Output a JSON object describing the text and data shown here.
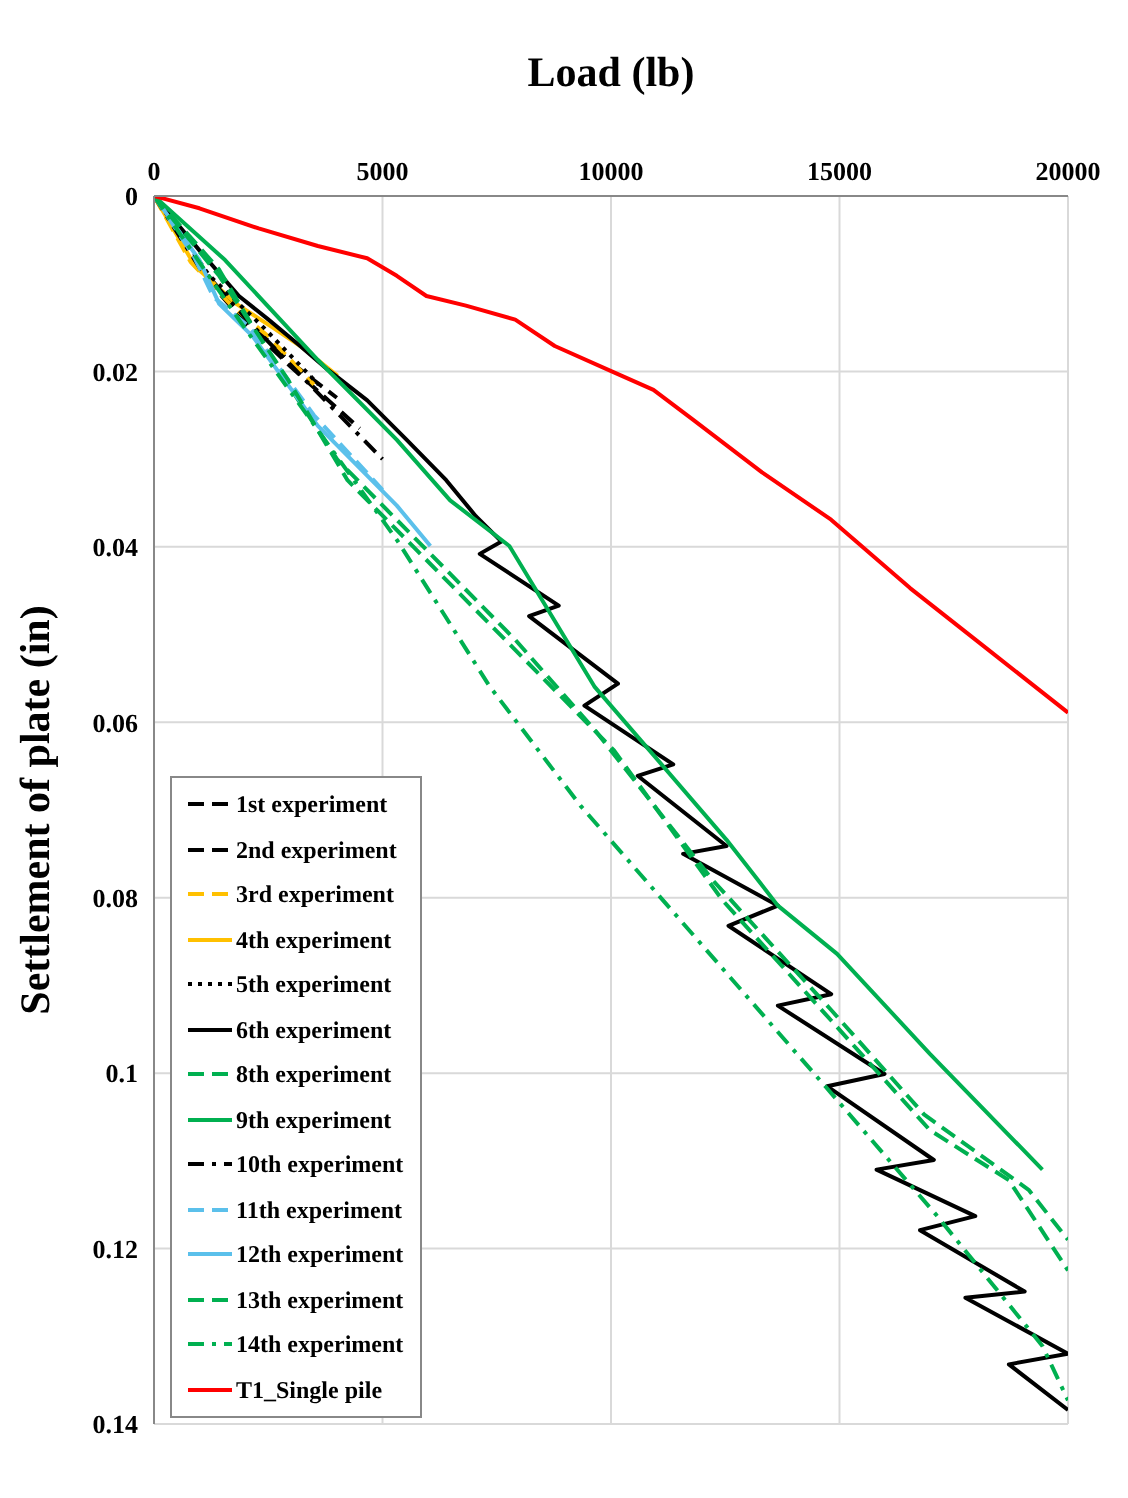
{
  "chart_data": {
    "type": "line",
    "xlabel": "Load (lb)",
    "ylabel": "Settlement of plate (in)",
    "xlim": [
      0,
      20000
    ],
    "xticks": [
      0,
      5000,
      10000,
      15000,
      20000
    ],
    "ylim": [
      0.14,
      0
    ],
    "yticks": [
      0,
      0.02,
      0.04,
      0.06,
      0.08,
      0.1,
      0.12,
      0.14
    ],
    "grid": true,
    "legend": "bottom left",
    "marker": "none",
    "series": [
      {
        "name": "1st experiment",
        "color": "#000000",
        "line_style": "dashed",
        "x": [
          0,
          1000,
          2000,
          3000,
          4000
        ],
        "values": [
          0,
          0.008,
          0.014,
          0.019,
          0.023
        ]
      },
      {
        "name": "2nd experiment",
        "color": "#000000",
        "line_style": "dashed",
        "x": [
          0,
          1000,
          2000,
          3000,
          4500
        ],
        "values": [
          0,
          0.0085,
          0.0145,
          0.0195,
          0.0265
        ]
      },
      {
        "name": "3rd experiment",
        "color": "#ffc000",
        "line_style": "dashed",
        "x": [
          0,
          800,
          1700,
          2500,
          3500
        ],
        "values": [
          0,
          0.0075,
          0.0125,
          0.016,
          0.0215
        ]
      },
      {
        "name": "4th experiment",
        "color": "#ffc000",
        "line_style": "solid",
        "x": [
          0,
          900,
          1800,
          2600,
          3200,
          4018
        ],
        "values": [
          0,
          0.008,
          0.0123,
          0.015,
          0.0171,
          0.0205
        ]
      },
      {
        "name": "5th experiment",
        "color": "#000000",
        "line_style": "dotted",
        "x": [
          0,
          1200,
          2400,
          3600
        ],
        "values": [
          0,
          0.009,
          0.015,
          0.0215
        ]
      },
      {
        "name": "6th experiment",
        "color": "#000000",
        "line_style": "solid",
        "x": [
          0,
          994,
          1858,
          2506,
          3154,
          3802,
          4666,
          5530,
          6394,
          7042,
          7603,
          7128,
          8856,
          8208,
          10152,
          9418,
          11362,
          10584,
          12528,
          11578,
          13651,
          12571,
          14818,
          13651,
          15984,
          14731,
          17064,
          15811,
          17971,
          16762,
          19051,
          17755,
          20000,
          18706,
          20000
        ],
        "values": [
          0,
          0.0062,
          0.0114,
          0.0141,
          0.0169,
          0.0198,
          0.0233,
          0.0278,
          0.0324,
          0.0365,
          0.0394,
          0.0408,
          0.0467,
          0.0479,
          0.0556,
          0.0581,
          0.0648,
          0.0661,
          0.0741,
          0.075,
          0.0809,
          0.0832,
          0.091,
          0.0923,
          0.1001,
          0.1015,
          0.1099,
          0.111,
          0.1163,
          0.1179,
          0.1249,
          0.1256,
          0.132,
          0.1332,
          0.1384
        ]
      },
      {
        "name": "8th experiment",
        "color": "#00b050",
        "line_style": "dashed",
        "x": [
          0,
          1426,
          2722,
          4018,
          5746,
          7906,
          9634,
          12226,
          14818,
          16848,
          19138,
          20000
        ],
        "values": [
          0,
          0.0084,
          0.0198,
          0.0301,
          0.0392,
          0.0506,
          0.0608,
          0.078,
          0.0928,
          0.1047,
          0.1133,
          0.119
        ]
      },
      {
        "name": "9th experiment",
        "color": "#00b050",
        "line_style": "solid",
        "x": [
          0,
          1555,
          3586,
          5314,
          6480,
          7776,
          9634,
          12528,
          13651,
          14947,
          16978,
          19440
        ],
        "values": [
          0,
          0.0073,
          0.0187,
          0.0278,
          0.0347,
          0.0399,
          0.0559,
          0.0734,
          0.0809,
          0.0864,
          0.0978,
          0.111
        ]
      },
      {
        "name": "10th experiment",
        "color": "#000000",
        "line_style": "dashdot",
        "x": [
          0,
          1000,
          2200,
          3500,
          5000
        ],
        "values": [
          0,
          0.0082,
          0.015,
          0.022,
          0.03
        ]
      },
      {
        "name": "11th experiment",
        "color": "#5bc0eb",
        "line_style": "dashed",
        "x": [
          0,
          864,
          1300,
          2100,
          3500,
          5000
        ],
        "values": [
          0,
          0.0068,
          0.0115,
          0.015,
          0.025,
          0.0335
        ]
      },
      {
        "name": "12th experiment",
        "color": "#5bc0eb",
        "line_style": "solid",
        "x": [
          0,
          994,
          1426,
          2160,
          3586,
          5314,
          6048
        ],
        "values": [
          0,
          0.0073,
          0.0123,
          0.016,
          0.0262,
          0.0353,
          0.0399
        ]
      },
      {
        "name": "13th experiment",
        "color": "#00b050",
        "line_style": "dashed",
        "x": [
          0,
          1426,
          2938,
          4234,
          5962,
          8122,
          10066,
          12442,
          14818,
          16978,
          18706,
          20000
        ],
        "values": [
          0,
          0.0091,
          0.021,
          0.0324,
          0.0415,
          0.0529,
          0.0632,
          0.0803,
          0.094,
          0.1065,
          0.1122,
          0.1225
        ]
      },
      {
        "name": "14th experiment",
        "color": "#00b050",
        "line_style": "dashdot",
        "x": [
          0,
          1858,
          3586,
          5314,
          7344,
          9331,
          14688,
          17107,
          19440,
          20000
        ],
        "values": [
          0,
          0.0141,
          0.0267,
          0.0392,
          0.0559,
          0.0695,
          0.1015,
          0.1161,
          0.1311,
          0.1373
        ]
      },
      {
        "name": "T1_Single pile",
        "color": "#ff0000",
        "line_style": "solid",
        "x": [
          0,
          994,
          2290,
          3585,
          4665,
          5313,
          5961,
          6825,
          7905,
          8769,
          10065,
          10929,
          11793,
          13305,
          14816,
          16544,
          18272,
          20000
        ],
        "values": [
          0,
          0.0014,
          0.0037,
          0.0057,
          0.0071,
          0.0091,
          0.0114,
          0.0125,
          0.0141,
          0.0171,
          0.0201,
          0.0221,
          0.0255,
          0.0315,
          0.0369,
          0.0447,
          0.0518,
          0.0589
        ]
      }
    ]
  }
}
